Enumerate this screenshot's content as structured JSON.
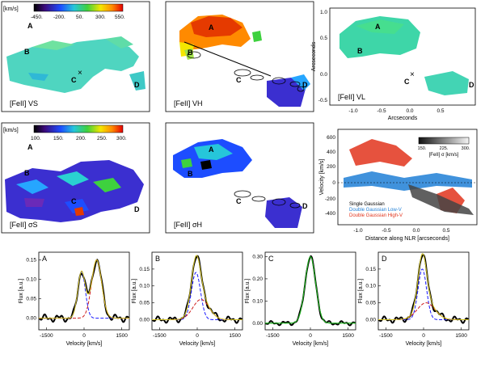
{
  "colorbar1": {
    "unit": "[km/s]",
    "ticks": [
      "-450.",
      "-200.",
      "50.",
      "300.",
      "550."
    ]
  },
  "colorbar2": {
    "unit": "[km/s]",
    "ticks": [
      "100.",
      "150.",
      "200.",
      "250.",
      "300."
    ]
  },
  "colorbar3": {
    "ticks": [
      "150.",
      "225.",
      "300."
    ],
    "title": "[FeII] σ [km/s]"
  },
  "maps": [
    {
      "caption": "[FeII] VS",
      "letters": [
        "A",
        "B",
        "C",
        "D"
      ]
    },
    {
      "caption": "[FeII] VH",
      "letters": [
        "A",
        "B",
        "C",
        "D"
      ]
    },
    {
      "caption": "[FeII] VL",
      "letters": [
        "A",
        "B",
        "C",
        "D"
      ]
    },
    {
      "caption": "[FeII] σS",
      "letters": [
        "A",
        "B",
        "C",
        "D"
      ]
    },
    {
      "caption": "[FeII] σH",
      "letters": [
        "A",
        "B",
        "C",
        "D"
      ]
    }
  ],
  "vl_axes": {
    "ylabel": "Arcseconds",
    "xlabel": "Arcseconds",
    "yticks": [
      "1.0",
      "0.5",
      "0.0",
      "-0.5"
    ],
    "xticks": [
      "-1.0",
      "-0.5",
      "0.0",
      "0.5"
    ]
  },
  "velocity_plot": {
    "ylabel": "Velocity [km/s]",
    "xlabel": "Distance along NLR [arcseconds]",
    "yticks": [
      "600",
      "400",
      "200",
      "0",
      "-200",
      "-400"
    ],
    "xticks": [
      "-1.0",
      "-0.5",
      "0.0",
      "0.5"
    ],
    "legend": [
      "Single Gaussian",
      "Double Gaussian Low-V",
      "Double Gaussian High-V"
    ],
    "legend_colors": [
      "#000000",
      "#1f7fd6",
      "#e2341c"
    ]
  },
  "chart_data": [
    {
      "type": "line",
      "panel": "A",
      "ylabel": "Flux [a.u.]",
      "xlabel": "Velocity [km/s]",
      "yticks": [
        "0.15",
        "0.10",
        "0.05",
        "0.00"
      ],
      "xticks": [
        "-1500",
        "0",
        "1500"
      ],
      "xlim": [
        -1800,
        1800
      ],
      "ylim": [
        -0.03,
        0.17
      ]
    },
    {
      "type": "line",
      "panel": "B",
      "ylabel": "Flux [a.u.]",
      "xlabel": "Velocity [km/s]",
      "yticks": [
        "0.15",
        "0.10",
        "0.05",
        "0.00"
      ],
      "xticks": [
        "-1500",
        "0",
        "1500"
      ],
      "xlim": [
        -1800,
        1800
      ],
      "ylim": [
        -0.03,
        0.2
      ]
    },
    {
      "type": "line",
      "panel": "C",
      "ylabel": "Flux [a.u.]",
      "xlabel": "Velocity [km/s]",
      "yticks": [
        "0.30",
        "0.20",
        "0.10",
        "0.00"
      ],
      "xticks": [
        "-1500",
        "0",
        "1500"
      ],
      "xlim": [
        -1800,
        1800
      ],
      "ylim": [
        -0.03,
        0.32
      ]
    },
    {
      "type": "line",
      "panel": "D",
      "ylabel": "Flux [a.u.]",
      "xlabel": "Velocity [km/s]",
      "yticks": [
        "0.15",
        "0.10",
        "0.05",
        "0.00"
      ],
      "xticks": [
        "-1500",
        "0",
        "1500"
      ],
      "xlim": [
        -1800,
        1800
      ],
      "ylim": [
        -0.03,
        0.2
      ]
    }
  ]
}
